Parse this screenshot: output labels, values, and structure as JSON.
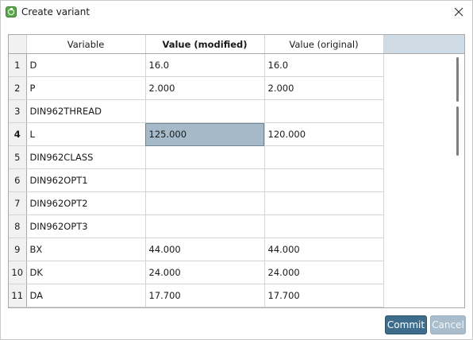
{
  "window": {
    "title": "Create variant",
    "icon": "app-logo-icon",
    "close_icon": "close-icon"
  },
  "grid": {
    "columns": {
      "variable": "Variable",
      "value_modified": "Value (modified)",
      "value_original": "Value (original)"
    },
    "rows": [
      {
        "num": "1",
        "variable": "D",
        "modified": "16.0",
        "original": "16.0"
      },
      {
        "num": "2",
        "variable": "P",
        "modified": "2.000",
        "original": "2.000"
      },
      {
        "num": "3",
        "variable": "DIN962THREAD",
        "modified": "",
        "original": ""
      },
      {
        "num": "4",
        "variable": "L",
        "modified": "125.000",
        "original": "120.000"
      },
      {
        "num": "5",
        "variable": "DIN962CLASS",
        "modified": "",
        "original": ""
      },
      {
        "num": "6",
        "variable": "DIN962OPT1",
        "modified": "",
        "original": ""
      },
      {
        "num": "7",
        "variable": "DIN962OPT2",
        "modified": "",
        "original": ""
      },
      {
        "num": "8",
        "variable": "DIN962OPT3",
        "modified": "",
        "original": ""
      },
      {
        "num": "9",
        "variable": "BX",
        "modified": "44.000",
        "original": "44.000"
      },
      {
        "num": "10",
        "variable": "DK",
        "modified": "24.000",
        "original": "24.000"
      },
      {
        "num": "11",
        "variable": "DA",
        "modified": "17.700",
        "original": "17.700"
      }
    ],
    "active_row": "4",
    "colors": {
      "selected_cell": "#a5b9c8",
      "header_filler": "#cfdce6"
    }
  },
  "buttons": {
    "commit": "Commit",
    "cancel": "Cancel",
    "commit_color": "#3e6d8c",
    "cancel_color": "#a9bdcc"
  }
}
